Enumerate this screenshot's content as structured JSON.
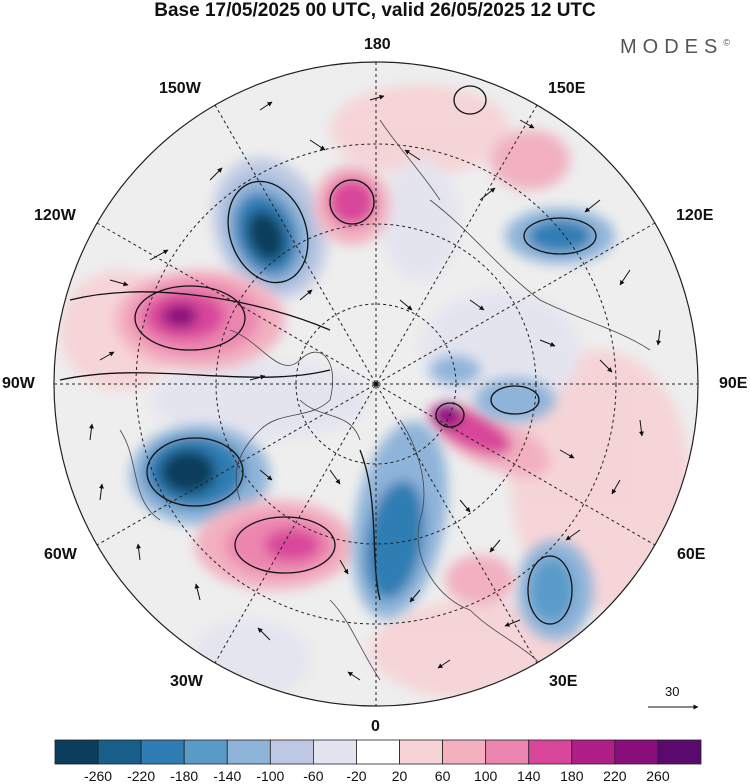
{
  "title": "Base 17/05/2025 00 UTC, valid 26/05/2025 12 UTC",
  "brand": "MODES",
  "brand_mark": "©",
  "longitude_labels": {
    "n180": "180",
    "w150": "150W",
    "e150": "150E",
    "w120": "120W",
    "e120": "120E",
    "w90": "90W",
    "e90": "90E",
    "w60": "60W",
    "e60": "60E",
    "w30": "30W",
    "e30": "30E",
    "s0": "0"
  },
  "vector_scale_label": "30",
  "colorbar": {
    "ticks": [
      "-260",
      "-220",
      "-180",
      "-140",
      "-100",
      "-60",
      "-20",
      "20",
      "60",
      "100",
      "140",
      "180",
      "220",
      "260"
    ],
    "colors": [
      "#0b3d5c",
      "#175f8a",
      "#2e7db3",
      "#5a9bc9",
      "#8fb4d9",
      "#bfc9e3",
      "#e4e4f0",
      "#ffffff",
      "#f6d3d6",
      "#f2b0c0",
      "#ec86b0",
      "#d9469a",
      "#b01f87",
      "#8a0e7e",
      "#5a0a6f"
    ]
  },
  "map": {
    "center_point_label": "",
    "anomaly_centers": [
      {
        "lon_label": "150W-120W",
        "sign": "negative",
        "magnitude": -240
      },
      {
        "lon_label": "120W-90W",
        "sign": "positive",
        "magnitude": 220
      },
      {
        "lon_label": "180",
        "sign": "positive",
        "magnitude": 180
      },
      {
        "lon_label": "120E",
        "sign": "negative",
        "magnitude": -180
      },
      {
        "lon_label": "90E",
        "sign": "positive",
        "magnitude": 220
      },
      {
        "lon_label": "60W-90W",
        "sign": "negative",
        "magnitude": -240
      },
      {
        "lon_label": "30W-60W",
        "sign": "positive",
        "magnitude": 200
      },
      {
        "lon_label": "0-30E",
        "sign": "negative",
        "magnitude": -180
      },
      {
        "lon_label": "30E-60E",
        "sign": "negative",
        "magnitude": -140
      }
    ]
  }
}
